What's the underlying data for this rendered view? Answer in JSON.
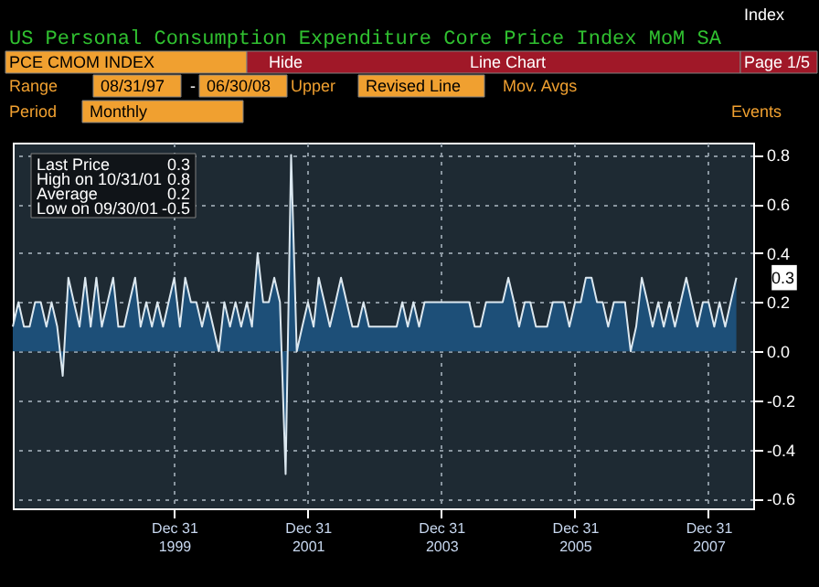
{
  "chart_data": {
    "type": "area",
    "title": "US Personal Consumption Expenditure Core Price Index MoM SA",
    "x": [
      "1997-08",
      "1997-09",
      "1997-10",
      "1997-11",
      "1997-12",
      "1998-01",
      "1998-02",
      "1998-03",
      "1998-04",
      "1998-05",
      "1998-06",
      "1998-07",
      "1998-08",
      "1998-09",
      "1998-10",
      "1998-11",
      "1998-12",
      "1999-01",
      "1999-02",
      "1999-03",
      "1999-04",
      "1999-05",
      "1999-06",
      "1999-07",
      "1999-08",
      "1999-09",
      "1999-10",
      "1999-11",
      "1999-12",
      "2000-01",
      "2000-02",
      "2000-03",
      "2000-04",
      "2000-05",
      "2000-06",
      "2000-07",
      "2000-08",
      "2000-09",
      "2000-10",
      "2000-11",
      "2000-12",
      "2001-01",
      "2001-02",
      "2001-03",
      "2001-04",
      "2001-05",
      "2001-06",
      "2001-07",
      "2001-08",
      "2001-09",
      "2001-10",
      "2001-11",
      "2001-12",
      "2002-01",
      "2002-02",
      "2002-03",
      "2002-04",
      "2002-05",
      "2002-06",
      "2002-07",
      "2002-08",
      "2002-09",
      "2002-10",
      "2002-11",
      "2002-12",
      "2003-01",
      "2003-02",
      "2003-03",
      "2003-04",
      "2003-05",
      "2003-06",
      "2003-07",
      "2003-08",
      "2003-09",
      "2003-10",
      "2003-11",
      "2003-12",
      "2004-01",
      "2004-02",
      "2004-03",
      "2004-04",
      "2004-05",
      "2004-06",
      "2004-07",
      "2004-08",
      "2004-09",
      "2004-10",
      "2004-11",
      "2004-12",
      "2005-01",
      "2005-02",
      "2005-03",
      "2005-04",
      "2005-05",
      "2005-06",
      "2005-07",
      "2005-08",
      "2005-09",
      "2005-10",
      "2005-11",
      "2005-12",
      "2006-01",
      "2006-02",
      "2006-03",
      "2006-04",
      "2006-05",
      "2006-06",
      "2006-07",
      "2006-08",
      "2006-09",
      "2006-10",
      "2006-11",
      "2006-12",
      "2007-01",
      "2007-02",
      "2007-03",
      "2007-04",
      "2007-05",
      "2007-06",
      "2007-07",
      "2007-08",
      "2007-09",
      "2007-10",
      "2007-11",
      "2007-12",
      "2008-01",
      "2008-02",
      "2008-03",
      "2008-04",
      "2008-05",
      "2008-06"
    ],
    "series": [
      {
        "color": "#1d4f78",
        "values": [
          0.1,
          0.2,
          0.1,
          0.1,
          0.2,
          0.2,
          0.1,
          0.2,
          0.1,
          -0.1,
          0.3,
          0.2,
          0.1,
          0.3,
          0.1,
          0.3,
          0.1,
          0.2,
          0.3,
          0.1,
          0.1,
          0.2,
          0.3,
          0.1,
          0.2,
          0.1,
          0.2,
          0.1,
          0.2,
          0.3,
          0.1,
          0.3,
          0.2,
          0.2,
          0.1,
          0.2,
          0.1,
          0.0,
          0.2,
          0.1,
          0.2,
          0.1,
          0.2,
          0.1,
          0.4,
          0.2,
          0.2,
          0.3,
          0.2,
          -0.5,
          0.8,
          0.0,
          0.1,
          0.2,
          0.1,
          0.3,
          0.2,
          0.1,
          0.2,
          0.3,
          0.2,
          0.1,
          0.1,
          0.2,
          0.1,
          0.1,
          0.1,
          0.1,
          0.1,
          0.1,
          0.2,
          0.1,
          0.2,
          0.1,
          0.2,
          0.2,
          0.2,
          0.2,
          0.2,
          0.2,
          0.2,
          0.2,
          0.2,
          0.1,
          0.1,
          0.2,
          0.2,
          0.2,
          0.2,
          0.3,
          0.2,
          0.1,
          0.2,
          0.2,
          0.1,
          0.1,
          0.1,
          0.2,
          0.2,
          0.2,
          0.1,
          0.2,
          0.2,
          0.3,
          0.3,
          0.2,
          0.2,
          0.1,
          0.2,
          0.2,
          0.2,
          0.0,
          0.1,
          0.3,
          0.2,
          0.1,
          0.2,
          0.1,
          0.2,
          0.1,
          0.2,
          0.3,
          0.2,
          0.1,
          0.2,
          0.2,
          0.1,
          0.2,
          0.1,
          0.2,
          0.3
        ]
      }
    ],
    "xlim": [
      "1997-08",
      "2008-09"
    ],
    "xticks": [
      {
        "value": "1999-12-31",
        "label": "Dec 31\n1999"
      },
      {
        "value": "2001-12-31",
        "label": "Dec 31\n2001"
      },
      {
        "value": "2003-12-31",
        "label": "Dec 31\n2003"
      },
      {
        "value": "2005-12-31",
        "label": "Dec 31\n2005"
      },
      {
        "value": "2007-12-31",
        "label": "Dec 31\n2007"
      }
    ],
    "ylim": [
      -0.64,
      0.85
    ],
    "yticks": [
      {
        "value": -0.6,
        "label": "-0.6"
      },
      {
        "value": -0.4,
        "label": "-0.4"
      },
      {
        "value": -0.2,
        "label": "-0.2"
      },
      {
        "value": 0,
        "label": "0.0"
      },
      {
        "value": 0.2,
        "label": "0.2"
      },
      {
        "value": 0.4,
        "label": "0.4"
      },
      {
        "value": 0.6,
        "label": "0.6"
      },
      {
        "value": 0.8,
        "label": "0.8"
      }
    ],
    "grid": true,
    "annotations": [
      "Index",
      "PCE CMOM INDEX",
      "Hide",
      "Line Chart",
      "Page 1/5",
      "Range",
      "08/31/97",
      "-",
      "06/30/08",
      "Upper",
      "Revised Line",
      "Mov. Avgs",
      "Period",
      "Monthly",
      "Events",
      "Last Price",
      "0.3",
      "High on 10/31/01",
      "0.8",
      "Average",
      "0.2",
      "Low on 09/30/01",
      "-0.5",
      {
        "text": "0.3",
        "x": "2008-06",
        "y": 0.3
      }
    ]
  }
}
